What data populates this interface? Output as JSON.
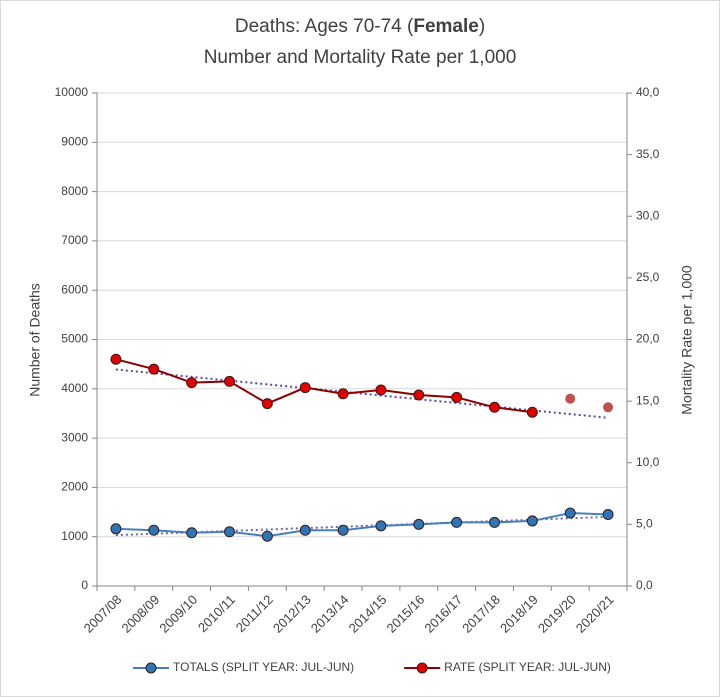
{
  "chart_data": {
    "type": "line",
    "title_prefix": "Deaths: Ages 70-74 (",
    "title_bold": "Female",
    "title_suffix": ")",
    "subtitle": "Number and Mortality Rate per 1,000",
    "y_label": "Number of Deaths",
    "y2_label": "Mortality Rate per 1,000",
    "categories": [
      "2007/08",
      "2008/09",
      "2009/10",
      "2010/11",
      "2011/12",
      "2012/13",
      "2013/14",
      "2014/15",
      "2015/16",
      "2016/17",
      "2017/18",
      "2018/19",
      "2019/20",
      "2020/21"
    ],
    "series": [
      {
        "name": "TOTALS (SPLIT YEAR: JUL-JUN)",
        "color": "#4a7ebb",
        "marker_color": "#2e75b6",
        "values": [
          1160,
          1130,
          1080,
          1100,
          1010,
          1130,
          1130,
          1220,
          1250,
          1290,
          1290,
          1320,
          1480,
          1450
        ],
        "trendline": true,
        "trend_color": "#6a6aa8"
      },
      {
        "name": "RATE (SPLIT YEAR: JUL-JUN)",
        "color": "#8b0000",
        "marker_color": "#e00000",
        "axis": "y2",
        "values": [
          18.4,
          17.6,
          16.5,
          16.6,
          14.8,
          16.1,
          15.6,
          15.9,
          15.5,
          15.3,
          14.5,
          14.1,
          null,
          null
        ],
        "trendline": true,
        "trend_color": "#5a4a9a"
      },
      {
        "marker_color": "#c0504d",
        "axis": "y2",
        "line": false,
        "values": [
          null,
          null,
          null,
          null,
          null,
          null,
          null,
          null,
          null,
          null,
          null,
          null,
          15.2,
          14.5
        ]
      }
    ],
    "ylim": [
      0,
      10000
    ],
    "yticks": [
      0,
      1000,
      2000,
      3000,
      4000,
      5000,
      6000,
      7000,
      8000,
      9000,
      10000
    ],
    "y2lim": [
      0,
      40
    ],
    "y2ticks": [
      {
        "value": 0,
        "label": "0,0"
      },
      {
        "value": 5,
        "label": "5,0"
      },
      {
        "value": 10,
        "label": "10,0"
      },
      {
        "value": 15,
        "label": "15,0"
      },
      {
        "value": 20,
        "label": "20,0"
      },
      {
        "value": 25,
        "label": "25,0"
      },
      {
        "value": 30,
        "label": "30,0"
      },
      {
        "value": 35,
        "label": "35,0"
      },
      {
        "value": 40,
        "label": "40,0"
      }
    ],
    "grid": true,
    "legend": "bottom"
  }
}
